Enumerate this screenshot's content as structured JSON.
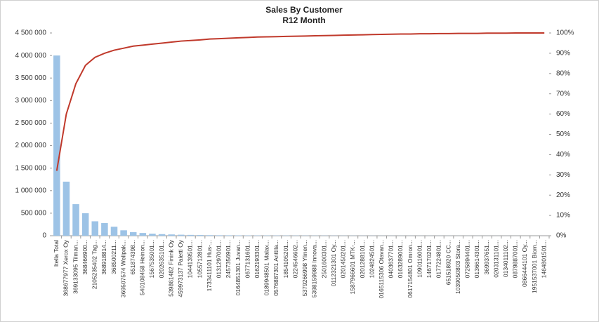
{
  "chart_data": {
    "type": "pareto",
    "title": "Sales By Customer",
    "subtitle": "R12 Month",
    "categories": [
      "Itella Total",
      "368677977 Xerox Oy",
      "369133095 Tilman...",
      "368466900...",
      "2105235402 Tag...",
      "368918814...",
      "368500211...",
      "369507574 Wellpak...",
      "651874398...",
      "540108458 Heinon...",
      "1567535001...",
      "0202635101...",
      "539861482 Finink Oy",
      "459973137 Paletti Oy",
      "1044139501...",
      "1055712801...",
      "1733411101 Hus-...",
      "0131297001...",
      "2457356901...",
      "0164851301 Juvan...",
      "0677131601...",
      "0162193301...",
      "0189948501 Malax...",
      "0576887301 Anttila...",
      "1854105201...",
      "0224546602...",
      "5379266998 Ylinen...",
      "5398159988 Innova...",
      "2501600301...",
      "0112321301 Oy...",
      "0201450201...",
      "1587966601 MTK-...",
      "0201288101...",
      "1024824501...",
      "0165115306 Otavan...",
      "0403637701...",
      "0163289001...",
      "0617154801 Omron...",
      "1090116001...",
      "1467170201...",
      "0177224801...",
      "651518920 CC...",
      "1039050803 Stora...",
      "0725894401...",
      "0136614301...",
      "369937651...",
      "0203131101...",
      "0134011102...",
      "0879887001...",
      "0866444101 Oy...",
      "1951537001 Biom...",
      "1464801501..."
    ],
    "series": [
      {
        "color": "#9dc3e6",
        "values": [
          4000000,
          1200000,
          700000,
          500000,
          320000,
          280000,
          200000,
          120000,
          80000,
          60000,
          45000,
          35000,
          28000,
          22000,
          18000,
          15000,
          12000,
          10000,
          9000,
          8000,
          7000,
          6500,
          6000,
          5500,
          5000,
          4500,
          4000,
          3800,
          3500,
          3200,
          3000,
          2800,
          2600,
          2400,
          2200,
          2000,
          1900,
          1800,
          1700,
          1600,
          1500,
          1400,
          1300,
          1200,
          1100,
          1000,
          900,
          800,
          700,
          600,
          500,
          400
        ]
      },
      {
        "color": "#c0392b",
        "axis": "y2",
        "values": [
          32,
          60,
          75,
          84,
          88,
          90,
          91.5,
          92.5,
          93.5,
          94,
          94.5,
          95,
          95.5,
          96,
          96.3,
          96.6,
          97,
          97.2,
          97.4,
          97.6,
          97.8,
          98,
          98.1,
          98.2,
          98.3,
          98.4,
          98.5,
          98.6,
          98.7,
          98.8,
          98.9,
          99,
          99.1,
          99.2,
          99.3,
          99.4,
          99.5,
          99.5,
          99.6,
          99.6,
          99.7,
          99.7,
          99.8,
          99.8,
          99.8,
          99.9,
          99.9,
          99.9,
          100,
          100,
          100,
          100
        ]
      }
    ],
    "ylim": [
      0,
      4500000
    ],
    "yticks": [
      {
        "value": 0,
        "label": "0"
      },
      {
        "value": 500000,
        "label": "500 000"
      },
      {
        "value": 1000000,
        "label": "1 000 000"
      },
      {
        "value": 1500000,
        "label": "1 500 000"
      },
      {
        "value": 2000000,
        "label": "2 000 000"
      },
      {
        "value": 2500000,
        "label": "2 500 000"
      },
      {
        "value": 3000000,
        "label": "3 000 000"
      },
      {
        "value": 3500000,
        "label": "3 500 000"
      },
      {
        "value": 4000000,
        "label": "4 000 000"
      },
      {
        "value": 4500000,
        "label": "4 500 000"
      }
    ],
    "y2lim": [
      0,
      100
    ],
    "y2ticks": [
      {
        "value": 0,
        "label": "0%"
      },
      {
        "value": 10,
        "label": "10%"
      },
      {
        "value": 20,
        "label": "20%"
      },
      {
        "value": 30,
        "label": "30%"
      },
      {
        "value": 40,
        "label": "40%"
      },
      {
        "value": 50,
        "label": "50%"
      },
      {
        "value": 60,
        "label": "60%"
      },
      {
        "value": 70,
        "label": "70%"
      },
      {
        "value": 80,
        "label": "80%"
      },
      {
        "value": 90,
        "label": "90%"
      },
      {
        "value": 100,
        "label": "100%"
      }
    ]
  }
}
